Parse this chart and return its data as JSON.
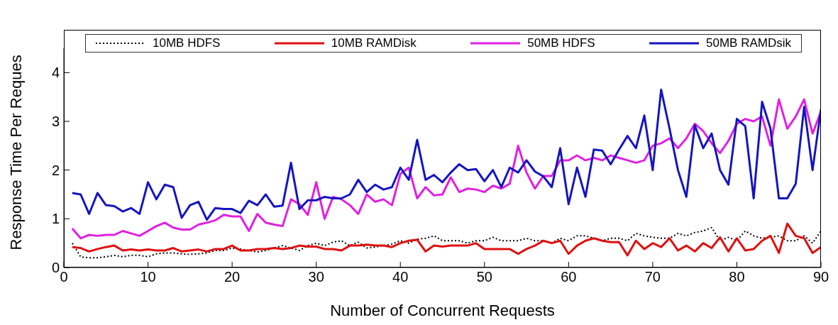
{
  "chart_data": {
    "type": "line",
    "xlabel": "Number of Concurrent Requests",
    "ylabel": "Response Time Per Reques",
    "x": [
      1,
      2,
      3,
      4,
      5,
      6,
      7,
      8,
      9,
      10,
      11,
      12,
      13,
      14,
      15,
      16,
      17,
      18,
      19,
      20,
      21,
      22,
      23,
      24,
      25,
      26,
      27,
      28,
      29,
      30,
      31,
      32,
      33,
      34,
      35,
      36,
      37,
      38,
      39,
      40,
      41,
      42,
      43,
      44,
      45,
      46,
      47,
      48,
      49,
      50,
      51,
      52,
      53,
      54,
      55,
      56,
      57,
      58,
      59,
      60,
      61,
      62,
      63,
      64,
      65,
      66,
      67,
      68,
      69,
      70,
      71,
      72,
      73,
      74,
      75,
      76,
      77,
      78,
      79,
      80,
      81,
      82,
      83,
      84,
      85,
      86,
      87,
      88,
      89,
      90
    ],
    "series": [
      {
        "name": "10MB HDFS",
        "color": "#000000",
        "line_style": "dotted",
        "values": [
          0.5,
          0.22,
          0.2,
          0.2,
          0.22,
          0.25,
          0.22,
          0.25,
          0.25,
          0.22,
          0.28,
          0.3,
          0.3,
          0.28,
          0.27,
          0.28,
          0.3,
          0.35,
          0.35,
          0.4,
          0.38,
          0.35,
          0.32,
          0.35,
          0.4,
          0.45,
          0.4,
          0.35,
          0.45,
          0.5,
          0.45,
          0.52,
          0.55,
          0.45,
          0.52,
          0.4,
          0.42,
          0.45,
          0.48,
          0.55,
          0.5,
          0.58,
          0.6,
          0.65,
          0.55,
          0.55,
          0.55,
          0.5,
          0.55,
          0.55,
          0.62,
          0.55,
          0.55,
          0.55,
          0.6,
          0.55,
          0.55,
          0.5,
          0.6,
          0.55,
          0.65,
          0.65,
          0.6,
          0.55,
          0.6,
          0.6,
          0.55,
          0.7,
          0.65,
          0.62,
          0.6,
          0.6,
          0.7,
          0.65,
          0.72,
          0.75,
          0.82,
          0.55,
          0.62,
          0.55,
          0.75,
          0.65,
          0.6,
          0.62,
          0.65,
          0.55,
          0.55,
          0.65,
          0.5,
          0.75
        ]
      },
      {
        "name": "10MB RAMDisk",
        "color": "#e01010",
        "line_style": "solid",
        "values": [
          0.42,
          0.4,
          0.33,
          0.38,
          0.42,
          0.45,
          0.35,
          0.37,
          0.35,
          0.37,
          0.35,
          0.35,
          0.4,
          0.33,
          0.35,
          0.37,
          0.33,
          0.38,
          0.38,
          0.45,
          0.35,
          0.35,
          0.38,
          0.38,
          0.4,
          0.38,
          0.4,
          0.45,
          0.43,
          0.43,
          0.38,
          0.38,
          0.35,
          0.45,
          0.45,
          0.47,
          0.45,
          0.45,
          0.42,
          0.5,
          0.55,
          0.57,
          0.33,
          0.45,
          0.43,
          0.45,
          0.45,
          0.45,
          0.5,
          0.38,
          0.38,
          0.38,
          0.38,
          0.28,
          0.38,
          0.45,
          0.55,
          0.5,
          0.55,
          0.28,
          0.45,
          0.55,
          0.6,
          0.55,
          0.52,
          0.52,
          0.25,
          0.55,
          0.38,
          0.5,
          0.42,
          0.6,
          0.35,
          0.45,
          0.33,
          0.5,
          0.4,
          0.62,
          0.33,
          0.6,
          0.35,
          0.38,
          0.55,
          0.65,
          0.3,
          0.9,
          0.65,
          0.6,
          0.3,
          0.42
        ]
      },
      {
        "name": "50MB HDFS",
        "color": "#e020e0",
        "line_style": "solid",
        "values": [
          0.8,
          0.6,
          0.67,
          0.65,
          0.67,
          0.67,
          0.75,
          0.7,
          0.65,
          0.75,
          0.85,
          0.92,
          0.82,
          0.78,
          0.78,
          0.88,
          0.92,
          0.97,
          1.08,
          1.05,
          1.05,
          0.75,
          1.1,
          0.92,
          0.88,
          0.85,
          1.4,
          1.3,
          1.08,
          1.75,
          1.0,
          1.45,
          1.4,
          1.28,
          1.1,
          1.5,
          1.35,
          1.4,
          1.28,
          1.92,
          2.05,
          1.42,
          1.65,
          1.48,
          1.5,
          1.85,
          1.55,
          1.62,
          1.6,
          1.55,
          1.68,
          1.62,
          1.72,
          2.5,
          1.95,
          1.62,
          1.88,
          1.88,
          2.2,
          2.2,
          2.3,
          2.2,
          2.25,
          2.2,
          2.3,
          2.25,
          2.2,
          2.15,
          2.2,
          2.5,
          2.55,
          2.65,
          2.45,
          2.65,
          2.95,
          2.8,
          2.55,
          2.35,
          2.6,
          2.95,
          3.05,
          3.0,
          3.1,
          2.5,
          3.45,
          2.85,
          3.1,
          3.45,
          2.75,
          3.2
        ]
      },
      {
        "name": "50MB RAMDsik",
        "color": "#1515c0",
        "line_style": "solid",
        "values": [
          1.53,
          1.5,
          1.1,
          1.53,
          1.28,
          1.26,
          1.15,
          1.22,
          1.1,
          1.75,
          1.4,
          1.7,
          1.65,
          1.02,
          1.28,
          1.35,
          0.98,
          1.22,
          1.2,
          1.2,
          1.12,
          1.37,
          1.28,
          1.5,
          1.25,
          1.27,
          2.15,
          1.2,
          1.38,
          1.38,
          1.45,
          1.42,
          1.42,
          1.5,
          1.8,
          1.55,
          1.7,
          1.6,
          1.65,
          2.05,
          1.8,
          2.62,
          1.8,
          1.9,
          1.75,
          1.95,
          2.12,
          2.0,
          2.02,
          1.77,
          2.0,
          1.65,
          2.05,
          1.95,
          2.2,
          1.97,
          1.87,
          1.65,
          2.45,
          1.3,
          2.05,
          1.45,
          2.42,
          2.4,
          2.12,
          2.42,
          2.7,
          2.45,
          3.12,
          2.0,
          3.65,
          2.85,
          2.0,
          1.45,
          2.92,
          2.45,
          2.75,
          2.0,
          1.7,
          3.05,
          2.9,
          1.42,
          3.4,
          2.85,
          1.42,
          1.42,
          1.72,
          3.3,
          2.0,
          3.25
        ]
      }
    ],
    "xlim": [
      0,
      90
    ],
    "xticks": [
      0,
      10,
      20,
      30,
      40,
      50,
      60,
      70,
      80,
      90
    ],
    "ylim": [
      0,
      4.5
    ],
    "yticks": [
      0,
      1,
      2,
      3,
      4
    ],
    "grid": false,
    "legend": "top",
    "marker": "none"
  }
}
